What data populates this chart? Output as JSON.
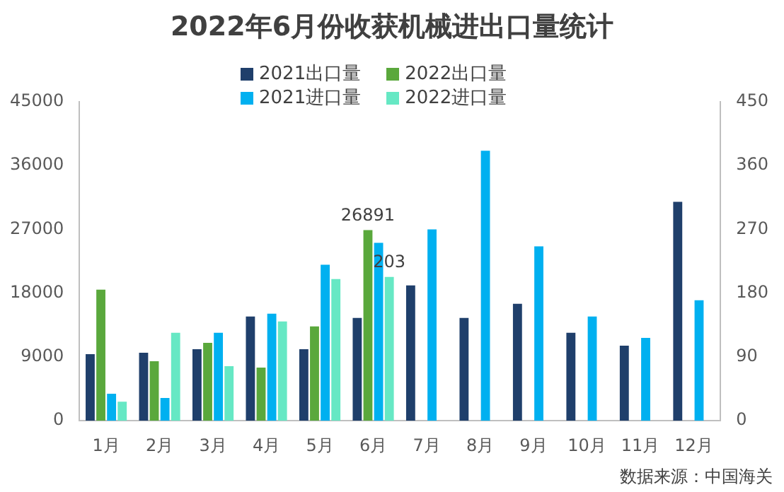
{
  "chart_data": {
    "type": "bar",
    "title": "2022年6月份收获机械进出口量统计",
    "categories": [
      "1月",
      "2月",
      "3月",
      "4月",
      "5月",
      "6月",
      "7月",
      "8月",
      "9月",
      "10月",
      "11月",
      "12月"
    ],
    "series": [
      {
        "name": "2021出口量",
        "color": "#1f3f6b",
        "values": [
          9400,
          9600,
          10100,
          14700,
          10100,
          14500,
          19100,
          14500,
          16500,
          12400,
          10600,
          30900
        ]
      },
      {
        "name": "2022出口量",
        "color": "#5aa83c",
        "values": [
          18500,
          8400,
          11000,
          7500,
          13300,
          26891,
          null,
          null,
          null,
          null,
          null,
          null
        ],
        "value_labels": [
          null,
          null,
          null,
          null,
          null,
          "26891",
          null,
          null,
          null,
          null,
          null,
          null
        ]
      },
      {
        "name": "2021进口量",
        "color": "#00b0f0",
        "axis": "y2",
        "values": [
          38,
          32,
          124,
          151,
          220,
          251,
          270,
          381,
          246,
          147,
          117,
          170
        ]
      },
      {
        "name": "2022进口量",
        "color": "#66e8c4",
        "axis": "y2",
        "values": [
          27,
          124,
          77,
          140,
          200,
          203,
          null,
          null,
          null,
          null,
          null,
          null
        ],
        "value_labels": [
          null,
          null,
          null,
          null,
          null,
          "203",
          null,
          null,
          null,
          null,
          null,
          null
        ]
      }
    ],
    "ylim": [
      0,
      45000
    ],
    "yticks": [
      0,
      9000,
      18000,
      27000,
      36000,
      45000
    ],
    "y2lim": [
      0,
      450
    ],
    "y2ticks": [
      0,
      90,
      180,
      270,
      360,
      450
    ],
    "grid": false,
    "legend": "top",
    "annotations": [
      "数据来源：中国海关"
    ]
  }
}
